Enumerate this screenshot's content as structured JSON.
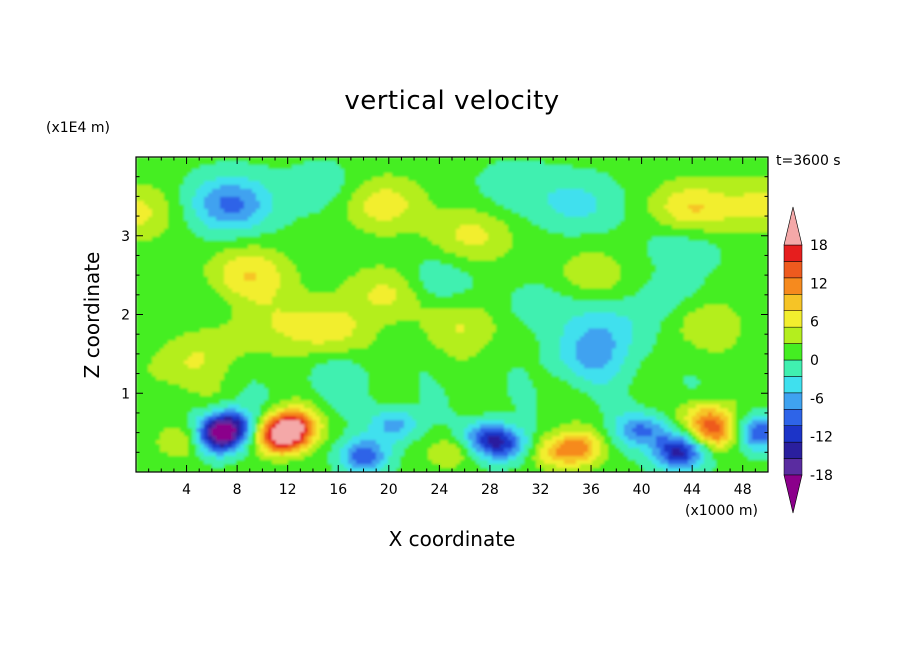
{
  "chart_data": {
    "type": "heatmap",
    "title": "vertical velocity",
    "xlabel": "X coordinate",
    "ylabel": "Z coordinate",
    "x_unit": "(x1000 m)",
    "y_unit": "(x1E4 m)",
    "time_label": "t=3600 s",
    "xlim": [
      0,
      50
    ],
    "ylim": [
      0,
      4
    ],
    "x_ticks": [
      4,
      8,
      12,
      16,
      20,
      24,
      28,
      32,
      36,
      40,
      44,
      48
    ],
    "y_ticks": [
      1,
      2,
      3
    ],
    "colorbar": {
      "ticks": [
        18,
        12,
        6,
        0,
        -6,
        -12,
        -18
      ],
      "levels": [
        -21,
        -18,
        -15,
        -12,
        -9,
        -6,
        -3,
        0,
        3,
        6,
        9,
        12,
        15,
        18,
        21
      ],
      "colors": [
        "#8b008b",
        "#5a2ca0",
        "#2a1f9e",
        "#1c34c8",
        "#2e64e8",
        "#3fa2f0",
        "#3fe0ee",
        "#40f0b0",
        "#44ee22",
        "#b4ee1e",
        "#f2ee2e",
        "#f6c426",
        "#f68a1e",
        "#ee5a1e",
        "#e61e1e",
        "#f4a8a8"
      ],
      "extend": "both"
    },
    "features": [
      {
        "x": 11.5,
        "z": 0.45,
        "value": 22
      },
      {
        "x": 12.5,
        "z": 0.6,
        "value": 14
      },
      {
        "x": 6.5,
        "z": 0.45,
        "value": -20
      },
      {
        "x": 7.5,
        "z": 0.6,
        "value": -14
      },
      {
        "x": 46,
        "z": 0.5,
        "value": 13
      },
      {
        "x": 45,
        "z": 0.7,
        "value": 9
      },
      {
        "x": 43,
        "z": 0.25,
        "value": -17
      },
      {
        "x": 49.3,
        "z": 0.5,
        "value": -14
      },
      {
        "x": 35,
        "z": 0.3,
        "value": 11
      },
      {
        "x": 33,
        "z": 0.25,
        "value": 7
      },
      {
        "x": 29,
        "z": 0.35,
        "value": -13
      },
      {
        "x": 27.5,
        "z": 0.45,
        "value": -9
      },
      {
        "x": 18,
        "z": 0.2,
        "value": -12
      },
      {
        "x": 20.5,
        "z": 0.6,
        "value": -9
      },
      {
        "x": 4,
        "z": 0.4,
        "value": 7
      },
      {
        "x": 25,
        "z": 0.25,
        "value": 5
      },
      {
        "x": 39.5,
        "z": 0.55,
        "value": -7
      },
      {
        "x": 41,
        "z": 0.5,
        "value": -5
      },
      {
        "x": 7.5,
        "z": 3.4,
        "value": -11
      },
      {
        "x": 23,
        "z": 2.4,
        "value": -6
      },
      {
        "x": 35,
        "z": 3.4,
        "value": -5
      },
      {
        "x": 43.5,
        "z": 3.0,
        "value": -5
      },
      {
        "x": 44,
        "z": 3.3,
        "value": 10
      },
      {
        "x": 50,
        "z": 3.4,
        "value": 6
      },
      {
        "x": 0,
        "z": 3.3,
        "value": 6
      },
      {
        "x": 9,
        "z": 2.5,
        "value": 8
      },
      {
        "x": 20.5,
        "z": 2.3,
        "value": 8
      },
      {
        "x": 19.5,
        "z": 3.4,
        "value": 7
      },
      {
        "x": 26.5,
        "z": 3.0,
        "value": 6
      },
      {
        "x": 36,
        "z": 2.5,
        "value": 4
      },
      {
        "x": 15,
        "z": 1.8,
        "value": 7
      },
      {
        "x": 26,
        "z": 1.85,
        "value": 5
      },
      {
        "x": 45,
        "z": 1.9,
        "value": 5
      },
      {
        "x": 3,
        "z": 1.3,
        "value": 4
      },
      {
        "x": 6.5,
        "z": 1.65,
        "value": 4
      },
      {
        "x": 11,
        "z": 1.95,
        "value": 3
      },
      {
        "x": 5,
        "z": 2.0,
        "value": -2
      },
      {
        "x": 37.5,
        "z": 1.85,
        "value": -5
      },
      {
        "x": 32,
        "z": 2.1,
        "value": -3
      },
      {
        "x": 43,
        "z": 2.2,
        "value": -3
      },
      {
        "x": 15,
        "z": 3.6,
        "value": -3
      },
      {
        "x": 30,
        "z": 3.6,
        "value": -3
      },
      {
        "x": 36,
        "z": 1.45,
        "value": -7
      },
      {
        "x": 16,
        "z": 1.2,
        "value": -3
      }
    ]
  }
}
